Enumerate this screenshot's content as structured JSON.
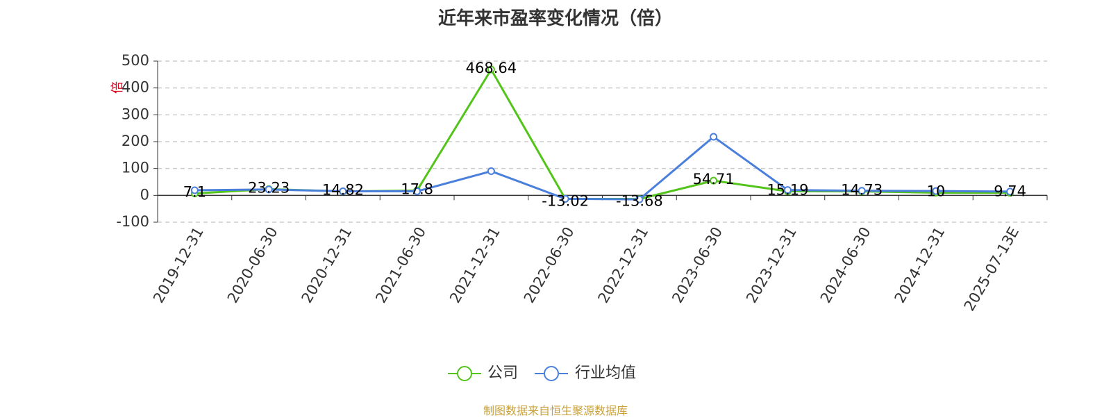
{
  "chart_data": {
    "type": "line",
    "title": "近年来市盈率变化情况（倍）",
    "ylabel": "倍",
    "xlabel": "",
    "categories": [
      "2019-12-31",
      "2020-06-30",
      "2020-12-31",
      "2021-06-30",
      "2021-12-31",
      "2022-06-30",
      "2022-12-31",
      "2023-06-30",
      "2023-12-31",
      "2024-06-30",
      "2024-12-31",
      "2025-07-13E"
    ],
    "series": [
      {
        "name": "公司",
        "color": "#52c41a",
        "values": [
          7.1,
          23.23,
          14.82,
          17.8,
          468.64,
          -13.02,
          -13.68,
          54.71,
          15.19,
          14.73,
          10,
          9.74
        ],
        "labels": [
          "7.1",
          "23.23",
          "14.82",
          "17.8",
          "468.64",
          "-13.02",
          "-13.68",
          "54.71",
          "15.19",
          "14.73",
          "10",
          "9.74"
        ]
      },
      {
        "name": "行业均值",
        "color": "#4a7fdc",
        "values": [
          19,
          22,
          15,
          15,
          90,
          -13,
          -15,
          218,
          20,
          17,
          16,
          14
        ]
      }
    ],
    "ylim": [
      -100,
      500
    ],
    "yticks": [
      "-100",
      "0",
      "100",
      "200",
      "300",
      "400",
      "500"
    ],
    "grid": true,
    "legend": "bottom-center",
    "source": "制图数据来自恒生聚源数据库"
  }
}
